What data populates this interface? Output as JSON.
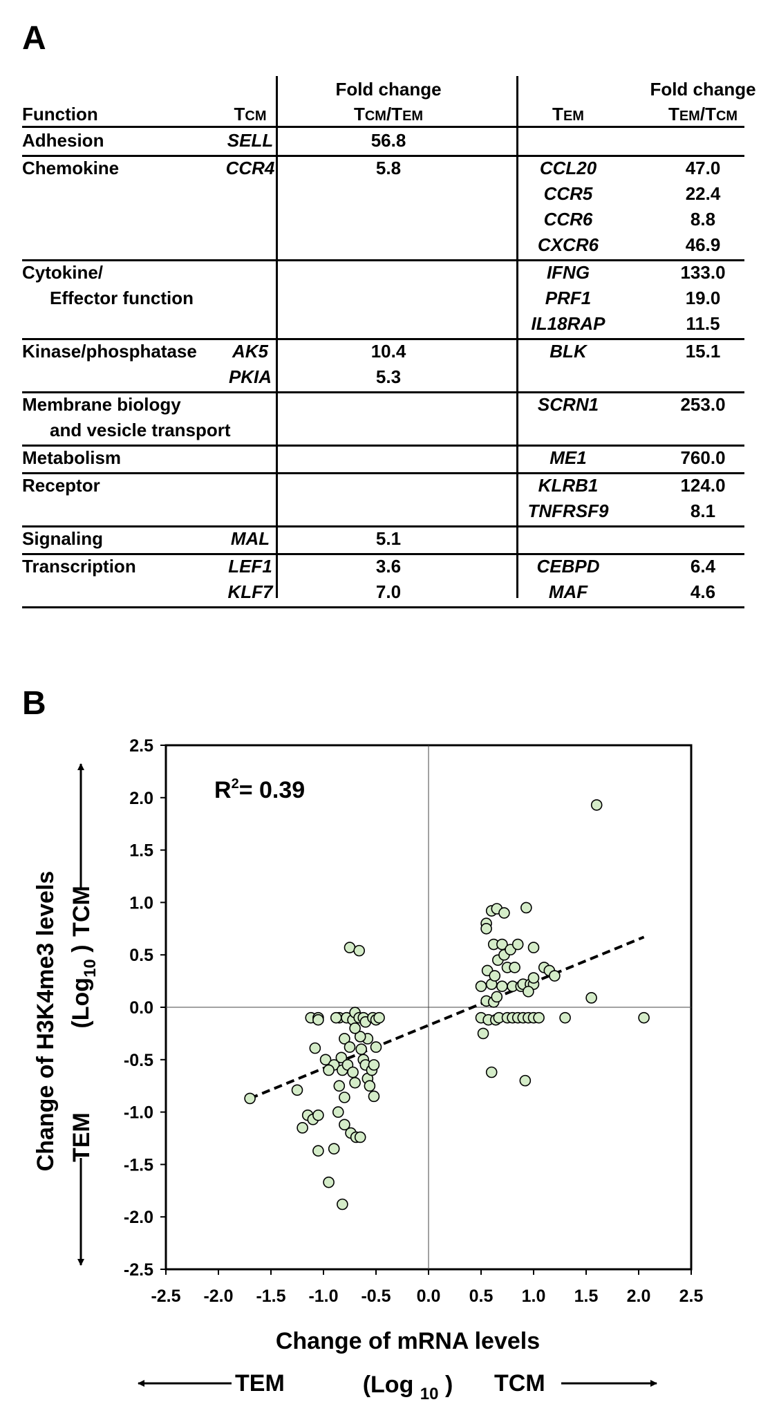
{
  "panel_a": {
    "label": "A",
    "headers": {
      "function": "Function",
      "tcm": "TCM",
      "fold_change_1": "Fold change",
      "fold_change_1_ratio": "TCM/TEM",
      "tem": "TEM",
      "fold_change_2": "Fold change",
      "fold_change_2_ratio": "TEM/TCM"
    },
    "rows": [
      {
        "function": [
          "Adhesion"
        ],
        "tcm": [
          {
            "gene": "SELL",
            "fc": "56.8"
          }
        ],
        "tem": []
      },
      {
        "function": [
          "Chemokine"
        ],
        "tcm": [
          {
            "gene": "CCR4",
            "fc": "5.8"
          }
        ],
        "tem": [
          {
            "gene": "CCL20",
            "fc": "47.0"
          },
          {
            "gene": "CCR5",
            "fc": "22.4"
          },
          {
            "gene": "CCR6",
            "fc": "8.8"
          },
          {
            "gene": "CXCR6",
            "fc": "46.9"
          }
        ]
      },
      {
        "function": [
          "Cytokine/",
          "Effector function"
        ],
        "tcm": [],
        "tem": [
          {
            "gene": "IFNG",
            "fc": "133.0"
          },
          {
            "gene": "PRF1",
            "fc": "19.0"
          },
          {
            "gene": "IL18RAP",
            "fc": "11.5"
          }
        ]
      },
      {
        "function": [
          "Kinase/phosphatase"
        ],
        "tcm": [
          {
            "gene": "AK5",
            "fc": "10.4"
          },
          {
            "gene": "PKIA",
            "fc": "5.3"
          }
        ],
        "tem": [
          {
            "gene": "BLK",
            "fc": "15.1"
          }
        ]
      },
      {
        "function": [
          "Membrane biology",
          "and vesicle transport"
        ],
        "tcm": [],
        "tem": [
          {
            "gene": "SCRN1",
            "fc": "253.0"
          }
        ]
      },
      {
        "function": [
          "Metabolism"
        ],
        "tcm": [],
        "tem": [
          {
            "gene": "ME1",
            "fc": "760.0"
          }
        ]
      },
      {
        "function": [
          "Receptor"
        ],
        "tcm": [],
        "tem": [
          {
            "gene": "KLRB1",
            "fc": "124.0"
          },
          {
            "gene": "TNFRSF9",
            "fc": "8.1"
          }
        ]
      },
      {
        "function": [
          "Signaling"
        ],
        "tcm": [
          {
            "gene": "MAL",
            "fc": "5.1"
          }
        ],
        "tem": []
      },
      {
        "function": [
          "Transcription"
        ],
        "tcm": [
          {
            "gene": "LEF1",
            "fc": "3.6"
          },
          {
            "gene": "KLF7",
            "fc": "7.0"
          }
        ],
        "tem": [
          {
            "gene": "CEBPD",
            "fc": "6.4"
          },
          {
            "gene": "MAF",
            "fc": "4.6"
          }
        ]
      }
    ]
  },
  "panel_b": {
    "label": "B",
    "r_squared_label": "R",
    "r_squared_sup": "2",
    "r_squared_value": "= 0.39",
    "x_title": "Change of mRNA levels",
    "x_sub_open": "(Log",
    "x_sub_base": "10",
    "x_sub_close": ")",
    "x_left_label": "TEM",
    "x_right_label": "TCM",
    "y_title": "Change of H3K4me3 levels",
    "y_sub": "(Log",
    "y_sub_base": "10",
    "y_sub_close": ")",
    "y_top_label": "TCM",
    "y_bottom_label": "TEM"
  },
  "chart_data": {
    "type": "scatter",
    "title": "",
    "xlabel": "Change of mRNA levels (Log10)",
    "ylabel": "Change of H3K4me3 levels (Log10)",
    "xlim": [
      -2.5,
      2.5
    ],
    "ylim": [
      -2.5,
      2.5
    ],
    "xticks": [
      "-2.5",
      "-2.0",
      "-1.5",
      "-1.0",
      "-0.5",
      "0.0",
      "0.5",
      "1.0",
      "1.5",
      "2.0",
      "2.5"
    ],
    "yticks": [
      "2.5",
      "2.0",
      "1.5",
      "1.0",
      "0.5",
      "0.0",
      "-0.5",
      "-1.0",
      "-1.5",
      "-2.0",
      "-2.5"
    ],
    "grid": false,
    "marker_color": "#d4ecc8",
    "trendline": {
      "style": "dashed",
      "x": [
        -1.7,
        2.05
      ],
      "y": [
        -0.87,
        0.67
      ]
    },
    "points": [
      [
        -1.7,
        -0.87
      ],
      [
        -1.25,
        -0.79
      ],
      [
        -1.2,
        -1.15
      ],
      [
        -1.15,
        -1.03
      ],
      [
        -1.1,
        -1.07
      ],
      [
        -1.05,
        -1.37
      ],
      [
        -1.05,
        -1.03
      ],
      [
        -1.08,
        -0.39
      ],
      [
        -1.12,
        -0.1
      ],
      [
        -1.05,
        -0.1
      ],
      [
        -1.05,
        -0.12
      ],
      [
        -0.98,
        -0.5
      ],
      [
        -0.95,
        -1.67
      ],
      [
        -0.9,
        -0.55
      ],
      [
        -0.9,
        -1.35
      ],
      [
        -0.86,
        -1.0
      ],
      [
        -0.85,
        -0.1
      ],
      [
        -0.83,
        -0.48
      ],
      [
        -0.82,
        -0.6
      ],
      [
        -0.8,
        -1.12
      ],
      [
        -0.8,
        -0.3
      ],
      [
        -0.8,
        -0.86
      ],
      [
        -0.82,
        -1.88
      ],
      [
        -0.78,
        -0.1
      ],
      [
        -0.77,
        -0.55
      ],
      [
        -0.75,
        -0.38
      ],
      [
        -0.74,
        -1.2
      ],
      [
        -0.72,
        -0.12
      ],
      [
        -0.72,
        -0.62
      ],
      [
        -0.75,
        0.57
      ],
      [
        -0.7,
        -0.05
      ],
      [
        -0.7,
        -0.72
      ],
      [
        -0.69,
        -1.24
      ],
      [
        -0.66,
        -0.1
      ],
      [
        -0.66,
        0.54
      ],
      [
        -0.65,
        -1.24
      ],
      [
        -0.64,
        -0.4
      ],
      [
        -0.62,
        -0.5
      ],
      [
        -0.62,
        -0.1
      ],
      [
        -0.6,
        -0.55
      ],
      [
        -0.58,
        -0.3
      ],
      [
        -0.6,
        -0.14
      ],
      [
        -0.58,
        -0.68
      ],
      [
        -0.56,
        -0.75
      ],
      [
        -0.54,
        -0.6
      ],
      [
        -0.53,
        -0.1
      ],
      [
        -0.52,
        -0.55
      ],
      [
        -0.52,
        -0.85
      ],
      [
        -0.5,
        -0.38
      ],
      [
        -0.5,
        -0.12
      ],
      [
        -0.47,
        -0.1
      ],
      [
        -0.65,
        -0.28
      ],
      [
        -0.88,
        -0.1
      ],
      [
        -0.7,
        -0.2
      ],
      [
        -0.85,
        -0.75
      ],
      [
        -0.95,
        -0.6
      ],
      [
        0.5,
        -0.1
      ],
      [
        0.52,
        -0.25
      ],
      [
        0.5,
        0.2
      ],
      [
        0.55,
        0.06
      ],
      [
        0.56,
        0.35
      ],
      [
        0.55,
        0.8
      ],
      [
        0.57,
        -0.12
      ],
      [
        0.6,
        0.92
      ],
      [
        0.6,
        0.22
      ],
      [
        0.6,
        -0.62
      ],
      [
        0.62,
        0.05
      ],
      [
        0.62,
        0.6
      ],
      [
        0.63,
        0.3
      ],
      [
        0.64,
        -0.12
      ],
      [
        0.65,
        0.94
      ],
      [
        0.65,
        0.1
      ],
      [
        0.66,
        0.45
      ],
      [
        0.67,
        -0.1
      ],
      [
        0.7,
        0.6
      ],
      [
        0.7,
        0.2
      ],
      [
        0.72,
        0.5
      ],
      [
        0.72,
        0.9
      ],
      [
        0.75,
        -0.1
      ],
      [
        0.75,
        0.38
      ],
      [
        0.78,
        0.55
      ],
      [
        0.8,
        0.2
      ],
      [
        0.8,
        -0.1
      ],
      [
        0.82,
        0.38
      ],
      [
        0.85,
        -0.1
      ],
      [
        0.88,
        0.2
      ],
      [
        0.9,
        -0.1
      ],
      [
        0.9,
        0.22
      ],
      [
        0.92,
        -0.7
      ],
      [
        0.93,
        0.95
      ],
      [
        0.95,
        -0.1
      ],
      [
        0.97,
        0.22
      ],
      [
        1.0,
        0.22
      ],
      [
        1.0,
        -0.1
      ],
      [
        1.0,
        0.28
      ],
      [
        1.0,
        0.57
      ],
      [
        1.05,
        -0.1
      ],
      [
        1.1,
        0.38
      ],
      [
        1.15,
        0.35
      ],
      [
        1.2,
        0.3
      ],
      [
        1.3,
        -0.1
      ],
      [
        1.55,
        0.09
      ],
      [
        1.6,
        1.93
      ],
      [
        2.05,
        -0.1
      ],
      [
        0.55,
        0.75
      ],
      [
        0.85,
        0.6
      ],
      [
        0.95,
        0.15
      ]
    ]
  }
}
